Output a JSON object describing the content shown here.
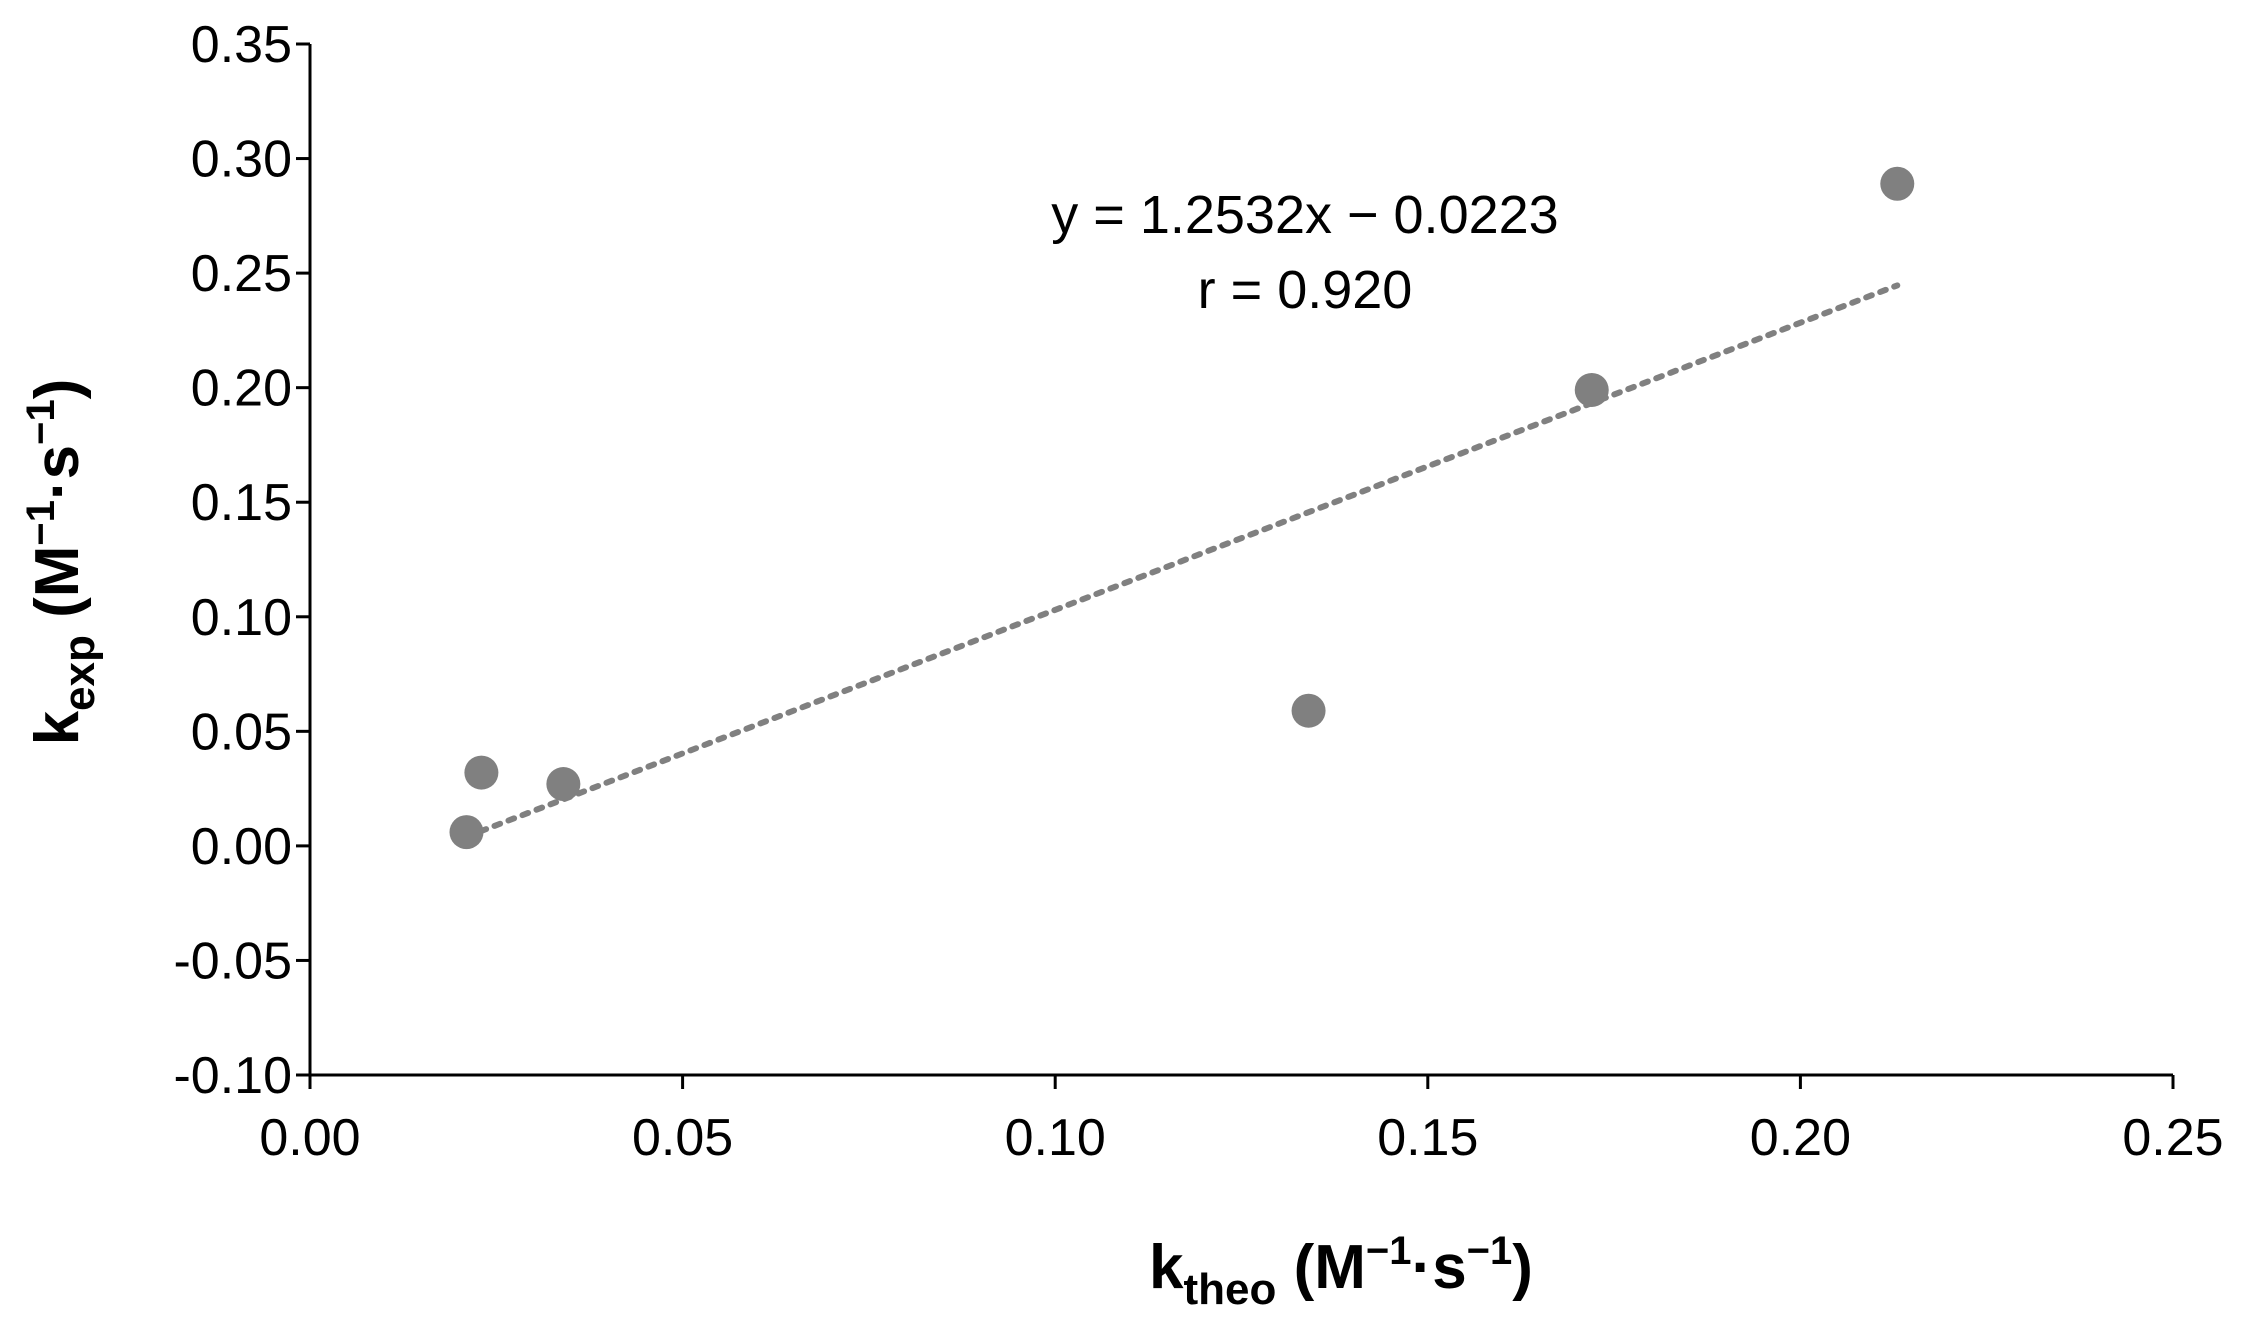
{
  "chart_data": {
    "type": "scatter",
    "title": "",
    "xlabel": {
      "main": "k",
      "sub": "theo",
      "unit_open": " (M",
      "sup1": "−1",
      "unit_mid": "·s",
      "sup2": "−1",
      "unit_close": ")"
    },
    "ylabel": {
      "main": "k",
      "sub": "exp",
      "unit_open": " (M",
      "sup1": "−1",
      "unit_mid": "·s",
      "sup2": "−1",
      "unit_close": ")"
    },
    "xlim": [
      0.0,
      0.25
    ],
    "ylim": [
      -0.1,
      0.35
    ],
    "x_ticks": [
      0.0,
      0.05,
      0.1,
      0.15,
      0.2,
      0.25
    ],
    "x_tick_labels": [
      "0.00",
      "0.05",
      "0.10",
      "0.15",
      "0.20",
      "0.25"
    ],
    "y_ticks": [
      -0.1,
      -0.05,
      0.0,
      0.05,
      0.1,
      0.15,
      0.2,
      0.25,
      0.3,
      0.35
    ],
    "y_tick_labels": [
      "-0.10",
      "-0.05",
      "0.00",
      "0.05",
      "0.10",
      "0.15",
      "0.20",
      "0.25",
      "0.30",
      "0.35"
    ],
    "grid": false,
    "legend": "none",
    "marker_color": "#808080",
    "trendline_color": "#808080",
    "points": [
      {
        "x": 0.021,
        "y": 0.006
      },
      {
        "x": 0.023,
        "y": 0.032
      },
      {
        "x": 0.034,
        "y": 0.027
      },
      {
        "x": 0.134,
        "y": 0.059
      },
      {
        "x": 0.172,
        "y": 0.199
      },
      {
        "x": 0.213,
        "y": 0.289
      }
    ],
    "trendline": {
      "slope": 1.2532,
      "intercept": -0.0223,
      "x_start": 0.021,
      "x_end": 0.213
    },
    "annotations": {
      "equation": "y = 1.2532x − 0.0223",
      "r": "r = 0.920"
    }
  }
}
